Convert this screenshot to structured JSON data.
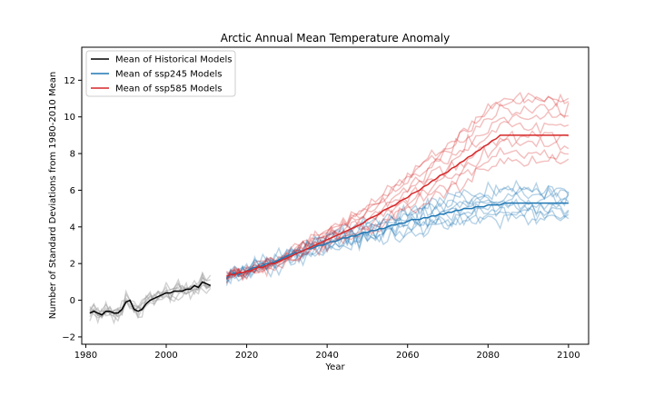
{
  "chart_data": {
    "type": "line",
    "title": "Arctic Annual Mean Temperature Anomaly",
    "xlabel": "Year",
    "ylabel": "Number of Standard Deviations from 1980-2010 Mean",
    "xlim": [
      1979,
      2105
    ],
    "ylim": [
      -2.4,
      13.8
    ],
    "x_ticks": [
      1980,
      2000,
      2020,
      2040,
      2060,
      2080,
      2100
    ],
    "y_ticks": [
      -2,
      0,
      2,
      4,
      6,
      8,
      10,
      12
    ],
    "grid": false,
    "legend_position": "top-left",
    "legend": [
      {
        "label": "Mean of Historical Models",
        "color": "#000000"
      },
      {
        "label": "Mean of ssp245 Models",
        "color": "#1f77b4"
      },
      {
        "label": "Mean of ssp585 Models",
        "color": "#d62728"
      }
    ],
    "series": [
      {
        "name": "Mean of Historical Models",
        "color": "#000000",
        "x_start": 1981,
        "x_step": 1,
        "values": [
          -0.7,
          -0.6,
          -0.7,
          -0.8,
          -0.6,
          -0.6,
          -0.7,
          -0.7,
          -0.5,
          -0.1,
          0.0,
          -0.5,
          -0.6,
          -0.5,
          -0.2,
          0.0,
          0.1,
          0.2,
          0.3,
          0.4,
          0.4,
          0.5,
          0.5,
          0.5,
          0.6,
          0.6,
          0.8,
          0.7,
          1.0,
          0.9,
          0.8
        ]
      },
      {
        "name": "Mean of ssp245 Models",
        "color": "#1f77b4",
        "x_start": 2015,
        "x_step": 1,
        "values": [
          1.2,
          1.4,
          1.5,
          1.4,
          1.5,
          1.6,
          1.7,
          1.8,
          1.8,
          1.9,
          2.0,
          2.0,
          2.1,
          2.2,
          2.3,
          2.4,
          2.5,
          2.6,
          2.6,
          2.7,
          2.8,
          2.8,
          2.9,
          3.0,
          3.0,
          3.1,
          3.2,
          3.2,
          3.3,
          3.4,
          3.4,
          3.5,
          3.5,
          3.6,
          3.7,
          3.7,
          3.8,
          3.8,
          3.9,
          3.9,
          4.0,
          4.1,
          4.1,
          4.2,
          4.2,
          4.3,
          4.4,
          4.4,
          4.4,
          4.5,
          4.5,
          4.6,
          4.6,
          4.7,
          4.7,
          4.8,
          4.8,
          4.9,
          4.9,
          5.0,
          5.0,
          5.0,
          5.1,
          5.1,
          5.1,
          5.2,
          5.2,
          5.2,
          5.2,
          5.3,
          5.3,
          5.3,
          5.3,
          5.3,
          5.3,
          5.3,
          5.3,
          5.3,
          5.3,
          5.3,
          5.3,
          5.3,
          5.3,
          5.3,
          5.3,
          5.3
        ]
      },
      {
        "name": "Mean of ssp585 Models",
        "color": "#d62728",
        "x_start": 2015,
        "x_step": 1,
        "values": [
          1.3,
          1.4,
          1.4,
          1.5,
          1.5,
          1.6,
          1.6,
          1.7,
          1.8,
          1.8,
          1.9,
          2.0,
          2.0,
          2.1,
          2.2,
          2.3,
          2.4,
          2.5,
          2.6,
          2.7,
          2.8,
          2.9,
          3.0,
          3.1,
          3.2,
          3.3,
          3.4,
          3.5,
          3.6,
          3.7,
          3.8,
          3.9,
          4.0,
          4.1,
          4.2,
          4.4,
          4.5,
          4.6,
          4.7,
          4.9,
          5.0,
          5.1,
          5.2,
          5.4,
          5.5,
          5.6,
          5.8,
          5.9,
          6.0,
          6.2,
          6.3,
          6.5,
          6.6,
          6.8,
          6.9,
          7.0,
          7.2,
          7.3,
          7.5,
          7.6,
          7.8,
          7.9,
          8.1,
          8.2,
          8.4,
          8.5,
          8.7,
          8.8,
          9.0,
          9.0,
          9.0,
          9.0,
          9.0,
          9.0,
          9.0,
          9.0,
          9.0,
          9.0,
          9.0,
          9.0,
          9.0,
          9.0,
          9.0,
          9.0,
          9.0,
          9.0
        ]
      }
    ]
  }
}
